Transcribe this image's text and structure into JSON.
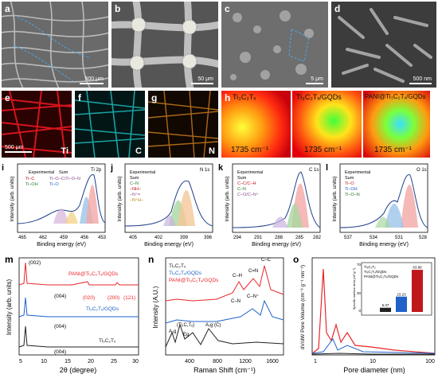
{
  "sem": [
    {
      "label": "a",
      "scale": "500 μm"
    },
    {
      "label": "b",
      "scale": "50 μm"
    },
    {
      "label": "c",
      "scale": "5 μm"
    },
    {
      "label": "d",
      "scale": "500 nm"
    }
  ],
  "eds": [
    {
      "label": "e",
      "scale": "500 μm",
      "element": "Ti",
      "color": "#d4141c"
    },
    {
      "label": "f",
      "element": "C",
      "color": "#1fb0b0"
    },
    {
      "label": "g",
      "element": "N",
      "color": "#c87a1c"
    }
  ],
  "raman_maps": {
    "label": "h",
    "titles": [
      "Ti₃C₂Tₓ",
      "Ti₃C₂Tₓ/GQDs",
      "PANI@Ti₃C₂Tₓ/GQDs"
    ],
    "shift": "1735 cm⁻¹"
  },
  "xps": [
    {
      "label": "i",
      "tag": "Ti 2p",
      "legend": [
        "Experimental",
        "Sum",
        "Ti–C",
        "Ti–OH",
        "Ti–O–C/Ti–O–N",
        "Ti–O"
      ],
      "ticks": [
        "465",
        "462",
        "459",
        "456",
        "453"
      ],
      "xlabel": "Binding energy (eV)",
      "ylabel": "Intensity (arb. units)"
    },
    {
      "label": "j",
      "tag": "N 1s",
      "legend": [
        "Experimental",
        "Sum",
        "C–N",
        "–NH–",
        "–N⁺=",
        "–N⁺H–"
      ],
      "ticks": [
        "405",
        "402",
        "399",
        "396"
      ],
      "xlabel": "Binding energy (eV)",
      "ylabel": "Intensity (arb. units)"
    },
    {
      "label": "k",
      "tag": "C 1s",
      "legend": [
        "Experimental",
        "Sum",
        "C–C/C–H",
        "C–N",
        "C–O/C–N⁺"
      ],
      "ticks": [
        "294",
        "291",
        "288",
        "285",
        "282"
      ],
      "xlabel": "Binding energy (eV)",
      "ylabel": "Intensity (arb. units)"
    },
    {
      "label": "l",
      "tag": "O 1s",
      "legend": [
        "Experimental",
        "Sum",
        "Ti–O",
        "Ti–OH",
        "Ti–O–N"
      ],
      "ticks": [
        "537",
        "534",
        "531",
        "528"
      ],
      "xlabel": "Binding energy (eV)",
      "ylabel": "Intensity (arb. units)"
    }
  ],
  "chart_data": [
    {
      "panel": "m",
      "type": "line",
      "xlabel": "2θ (degree)",
      "ylabel": "Intensity (arb. units)",
      "xlim": [
        5,
        30
      ],
      "xticks": [
        "5",
        "10",
        "15",
        "20",
        "25",
        "30"
      ],
      "series": [
        {
          "name": "PANI@Ti₃C₂Tₓ/GQDs",
          "color": "#e8262a"
        },
        {
          "name": "Ti₃C₂Tₓ/GQDs",
          "color": "#1f62c8"
        },
        {
          "name": "Ti₃C₂Tₓ",
          "color": "#222222"
        }
      ],
      "annotations": [
        "(002)",
        "(004)",
        "(020)",
        "(200)",
        "(121)",
        "(004)",
        "(004)"
      ]
    },
    {
      "panel": "n",
      "type": "line",
      "xlabel": "Raman Shift (cm⁻¹)",
      "ylabel": "Intensity (A.U.)",
      "xlim": [
        100,
        1800
      ],
      "xticks": [
        "400",
        "800",
        "1200",
        "1600"
      ],
      "series": [
        {
          "name": "Ti₃C₂Tₓ",
          "color": "#222222"
        },
        {
          "name": "Ti₃C₂Tₓ/GQDs",
          "color": "#1f62c8"
        },
        {
          "name": "PANI@Ti₃C₂Tₓ/GQDs",
          "color": "#e8262a"
        }
      ],
      "annotations": [
        "C–H",
        "C=N",
        "C–C",
        "C–N",
        "C–N⁺",
        "A₁g",
        "(Ti,C,Tₓ)",
        "Eg",
        "A₁g (C)"
      ]
    },
    {
      "panel": "o",
      "type": "line",
      "xscale": "log",
      "xlabel": "Pore diameter (nm)",
      "ylabel": "dV/dW Pore Volume (cm⁻³ g⁻¹ nm⁻¹)",
      "xticks": [
        "1",
        "10",
        "100"
      ],
      "series": [
        {
          "name": "Ti₃C₂Tₓ",
          "color": "#222222"
        },
        {
          "name": "Ti₃C₂Tₓ/GQDs",
          "color": "#1f62c8"
        },
        {
          "name": "PANI@Ti₃C₂Tₓ/GQDs",
          "color": "#e8262a"
        }
      ],
      "inset": {
        "type": "bar",
        "ylabel": "Specific surface area (m² g⁻¹)",
        "ylim": [
          0,
          70
        ],
        "yticks": [
          "0",
          "10",
          "20",
          "30",
          "40",
          "50",
          "60",
          "70"
        ],
        "categories": [
          "Ti₃C₂Tₓ",
          "Ti₃C₂Tₓ/GQDs",
          "PANI@Ti₃C₂Tₓ/GQDs"
        ],
        "values": [
          6.37,
          23.23,
          63.88
        ],
        "value_labels": [
          "6.37",
          "23.23",
          "63.88"
        ],
        "colors": [
          "#222222",
          "#1f62c8",
          "#c0171c"
        ]
      }
    }
  ]
}
